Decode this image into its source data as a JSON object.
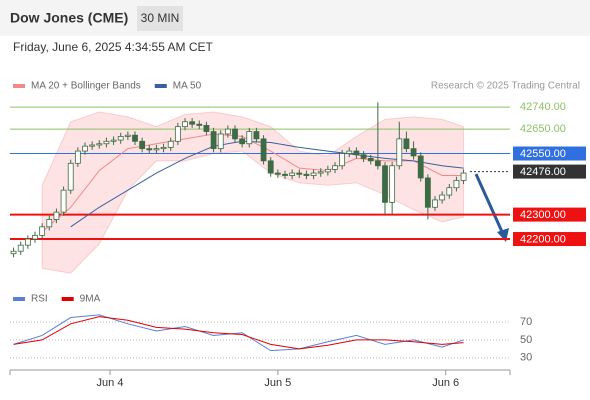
{
  "chart_data": {
    "type": "candlestick",
    "title": "Dow Jones (CME)",
    "timeframe": "30 MIN",
    "subtitle": "Friday, June 6, 2025 4:34:55 AM CET",
    "credit": "Research © 2025 Trading Central",
    "up_color": "#ffffff",
    "down_color": "#3d6b45",
    "edge_color": "#3d6b45",
    "open": [
      42140,
      42150,
      42175,
      42200,
      42215,
      42250,
      42280,
      42310,
      42400,
      42510,
      42560,
      42580,
      42585,
      42590,
      42600,
      42605,
      42620,
      42625,
      42600,
      42570,
      42565,
      42570,
      42575,
      42600,
      42660,
      42680,
      42670,
      42665,
      42640,
      42570,
      42630,
      42650,
      42610,
      42590,
      42640,
      42610,
      42520,
      42470,
      42465,
      42460,
      42470,
      42465,
      42460,
      42470,
      42475,
      42485,
      42500,
      42550,
      42560,
      42545,
      42530,
      42520,
      42500,
      42350,
      42500,
      42610,
      42570,
      42540,
      42450,
      42330,
      42360,
      42380,
      42410,
      42440
    ],
    "high": [
      42165,
      42190,
      42215,
      42230,
      42265,
      42295,
      42325,
      42415,
      42525,
      42575,
      42595,
      42600,
      42605,
      42615,
      42620,
      42635,
      42640,
      42640,
      42615,
      42585,
      42585,
      42590,
      42615,
      42675,
      42695,
      42695,
      42685,
      42680,
      42655,
      42645,
      42665,
      42665,
      42625,
      42655,
      42655,
      42625,
      42535,
      42485,
      42480,
      42485,
      42485,
      42480,
      42485,
      42490,
      42500,
      42515,
      42565,
      42575,
      42575,
      42560,
      42545,
      42760,
      42515,
      42515,
      42680,
      42640,
      42600,
      42555,
      42465,
      42375,
      42395,
      42425,
      42455,
      42485
    ],
    "low": [
      42125,
      42135,
      42160,
      42185,
      42200,
      42235,
      42265,
      42295,
      42385,
      42495,
      42545,
      42565,
      42570,
      42575,
      42585,
      42590,
      42605,
      42585,
      42555,
      42550,
      42550,
      42555,
      42560,
      42585,
      42645,
      42655,
      42650,
      42625,
      42555,
      42555,
      42615,
      42595,
      42575,
      42575,
      42595,
      42505,
      42455,
      42450,
      42445,
      42445,
      42450,
      42445,
      42445,
      42455,
      42460,
      42470,
      42485,
      42535,
      42530,
      42515,
      42505,
      42485,
      42300,
      42300,
      42485,
      42555,
      42525,
      42435,
      42280,
      42315,
      42345,
      42365,
      42395,
      42425
    ],
    "close": [
      42150,
      42175,
      42200,
      42215,
      42250,
      42280,
      42310,
      42400,
      42510,
      42560,
      42580,
      42585,
      42590,
      42600,
      42605,
      42620,
      42625,
      42600,
      42570,
      42565,
      42570,
      42575,
      42600,
      42660,
      42680,
      42670,
      42665,
      42640,
      42570,
      42630,
      42650,
      42610,
      42590,
      42640,
      42610,
      42520,
      42470,
      42465,
      42460,
      42470,
      42465,
      42460,
      42470,
      42475,
      42485,
      42500,
      42550,
      42560,
      42545,
      42530,
      42520,
      42500,
      42350,
      42500,
      42610,
      42570,
      42540,
      42450,
      42330,
      42360,
      42380,
      42410,
      42440,
      42470
    ],
    "xlim": [
      -0.5,
      69.5
    ],
    "xticks": [
      {
        "value": 13.5,
        "label": "Jun 4"
      },
      {
        "value": 37,
        "label": "Jun 5"
      },
      {
        "value": 60.5,
        "label": "Jun 6"
      }
    ],
    "ylim": [
      42020,
      42810
    ],
    "levels": [
      {
        "value": 42740,
        "label": "42740.00",
        "color": "#8cc265",
        "style": "text"
      },
      {
        "value": 42650,
        "label": "42650.00",
        "color": "#8cc265",
        "style": "text"
      },
      {
        "value": 42550,
        "label": "42550.00",
        "color": "#2f6fe0",
        "style": "box"
      },
      {
        "value": 42476,
        "label": "42476.00",
        "color": "#333333",
        "style": "box",
        "dashed": true
      },
      {
        "value": 42300,
        "label": "42300.00",
        "color": "#ee1111",
        "style": "box"
      },
      {
        "value": 42200,
        "label": "42200.00",
        "color": "#ee1111",
        "style": "box"
      }
    ],
    "overlays": [
      {
        "name": "MA 20 + Bollinger Bands",
        "color": "#f08a8a",
        "band_color": "#fde0e0",
        "x": [
          0,
          4,
          8,
          12,
          16,
          20,
          24,
          28,
          32,
          36,
          40,
          44,
          48,
          52,
          56,
          60,
          63
        ],
        "values": [
          null,
          42230,
          42330,
          42480,
          42570,
          42590,
          42610,
          42630,
          42620,
          42560,
          42490,
          42480,
          42530,
          42520,
          42520,
          42460,
          42460
        ],
        "upper": [
          null,
          42420,
          42680,
          42720,
          42700,
          42660,
          42710,
          42720,
          42700,
          42660,
          42560,
          42540,
          42620,
          42690,
          42700,
          42690,
          42660
        ],
        "lower": [
          null,
          42080,
          42060,
          42180,
          42400,
          42520,
          42520,
          42550,
          42560,
          42470,
          42430,
          42420,
          42430,
          42380,
          42320,
          42270,
          42290
        ]
      },
      {
        "name": "MA 50",
        "color": "#3a5f9e",
        "x": [
          0,
          4,
          8,
          12,
          16,
          20,
          24,
          28,
          32,
          36,
          40,
          44,
          48,
          52,
          56,
          60,
          63
        ],
        "values": [
          null,
          null,
          42250,
          42330,
          42400,
          42470,
          42530,
          42580,
          42600,
          42595,
          42575,
          42560,
          42545,
          42530,
          42520,
          42500,
          42490
        ]
      }
    ],
    "rsi": {
      "ylim": [
        22,
        89
      ],
      "yticks": [
        30,
        50,
        70
      ],
      "series": [
        {
          "name": "RSI",
          "color": "#5b7fd6",
          "x": [
            0,
            4,
            8,
            12,
            16,
            20,
            24,
            28,
            32,
            36,
            40,
            44,
            48,
            52,
            56,
            60,
            63
          ],
          "values": [
            45,
            55,
            75,
            78,
            68,
            60,
            65,
            55,
            58,
            38,
            40,
            48,
            55,
            45,
            50,
            42,
            50
          ]
        },
        {
          "name": "9MA",
          "color": "#e00000",
          "x": [
            0,
            4,
            8,
            12,
            16,
            20,
            24,
            28,
            32,
            36,
            40,
            44,
            48,
            52,
            56,
            60,
            63
          ],
          "values": [
            45,
            50,
            68,
            76,
            72,
            64,
            62,
            58,
            56,
            45,
            40,
            44,
            50,
            50,
            48,
            45,
            47
          ]
        }
      ]
    }
  }
}
